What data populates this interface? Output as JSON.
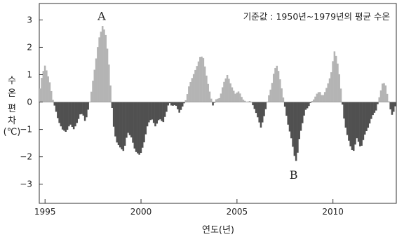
{
  "chart_data": {
    "type": "bar",
    "note": "기준값 : 1950년~1979년의 평균 수온",
    "ylabel_lines": [
      "수",
      "온",
      "",
      "편",
      "차",
      "(℃)"
    ],
    "xlabel": "연도(년)",
    "xlim": [
      1994.7,
      2013.3
    ],
    "ylim": [
      -3.7,
      3.6
    ],
    "x_ticks": [
      1995,
      2000,
      2005,
      2010
    ],
    "y_ticks": [
      3,
      2,
      1,
      0,
      -1,
      -2,
      -3
    ],
    "positive_color": "#b4b4b4",
    "negative_color": "#505050",
    "annotations": [
      {
        "label": "A",
        "x": 1997.95,
        "y": 3.15
      },
      {
        "label": "B",
        "x": 2007.95,
        "y": -2.65
      }
    ],
    "anchors": [
      [
        1994.7,
        0.3
      ],
      [
        1994.85,
        1.0
      ],
      [
        1995.0,
        1.35
      ],
      [
        1995.25,
        0.7
      ],
      [
        1995.4,
        0.1
      ],
      [
        1995.5,
        -0.15
      ],
      [
        1995.7,
        -0.7
      ],
      [
        1995.9,
        -1.0
      ],
      [
        1996.1,
        -1.1
      ],
      [
        1996.3,
        -0.8
      ],
      [
        1996.5,
        -1.0
      ],
      [
        1996.7,
        -0.7
      ],
      [
        1996.85,
        -0.4
      ],
      [
        1997.0,
        -0.5
      ],
      [
        1997.1,
        -0.75
      ],
      [
        1997.25,
        -0.25
      ],
      [
        1997.35,
        0.1
      ],
      [
        1997.6,
        1.3
      ],
      [
        1997.8,
        2.3
      ],
      [
        1998.0,
        2.8
      ],
      [
        1998.15,
        2.5
      ],
      [
        1998.3,
        1.6
      ],
      [
        1998.42,
        0.5
      ],
      [
        1998.5,
        -0.3
      ],
      [
        1998.6,
        -1.1
      ],
      [
        1998.75,
        -1.5
      ],
      [
        1998.95,
        -1.7
      ],
      [
        1999.1,
        -1.8
      ],
      [
        1999.3,
        -1.1
      ],
      [
        1999.5,
        -1.3
      ],
      [
        1999.7,
        -1.8
      ],
      [
        1999.95,
        -1.95
      ],
      [
        2000.15,
        -1.5
      ],
      [
        2000.35,
        -0.8
      ],
      [
        2000.55,
        -0.6
      ],
      [
        2000.75,
        -0.9
      ],
      [
        2000.95,
        -0.6
      ],
      [
        2001.15,
        -0.75
      ],
      [
        2001.35,
        -0.3
      ],
      [
        2001.45,
        0.0
      ],
      [
        2001.6,
        -0.15
      ],
      [
        2001.8,
        -0.1
      ],
      [
        2002.0,
        -0.4
      ],
      [
        2002.2,
        -0.1
      ],
      [
        2002.35,
        0.1
      ],
      [
        2002.5,
        0.6
      ],
      [
        2002.7,
        0.95
      ],
      [
        2002.9,
        1.3
      ],
      [
        2003.1,
        1.7
      ],
      [
        2003.25,
        1.6
      ],
      [
        2003.45,
        0.8
      ],
      [
        2003.6,
        0.3
      ],
      [
        2003.75,
        -0.15
      ],
      [
        2003.9,
        0.1
      ],
      [
        2004.1,
        0.15
      ],
      [
        2004.3,
        0.7
      ],
      [
        2004.5,
        1.0
      ],
      [
        2004.7,
        0.6
      ],
      [
        2004.9,
        0.3
      ],
      [
        2005.1,
        0.4
      ],
      [
        2005.3,
        0.1
      ],
      [
        2005.5,
        0.0
      ],
      [
        2005.7,
        0.05
      ],
      [
        2005.85,
        -0.15
      ],
      [
        2006.05,
        -0.5
      ],
      [
        2006.25,
        -0.95
      ],
      [
        2006.45,
        -0.4
      ],
      [
        2006.6,
        0.1
      ],
      [
        2006.8,
        0.6
      ],
      [
        2006.95,
        1.2
      ],
      [
        2007.1,
        1.35
      ],
      [
        2007.25,
        0.8
      ],
      [
        2007.4,
        0.2
      ],
      [
        2007.5,
        -0.2
      ],
      [
        2007.65,
        -0.8
      ],
      [
        2007.85,
        -1.4
      ],
      [
        2008.0,
        -2.0
      ],
      [
        2008.1,
        -2.2
      ],
      [
        2008.25,
        -1.3
      ],
      [
        2008.4,
        -0.8
      ],
      [
        2008.55,
        -0.3
      ],
      [
        2008.7,
        -0.2
      ],
      [
        2008.85,
        0.0
      ],
      [
        2009.0,
        0.1
      ],
      [
        2009.15,
        0.3
      ],
      [
        2009.3,
        0.4
      ],
      [
        2009.45,
        0.2
      ],
      [
        2009.6,
        0.4
      ],
      [
        2009.8,
        0.8
      ],
      [
        2009.95,
        1.2
      ],
      [
        2010.05,
        1.9
      ],
      [
        2010.2,
        1.6
      ],
      [
        2010.35,
        0.9
      ],
      [
        2010.45,
        0.2
      ],
      [
        2010.55,
        -0.5
      ],
      [
        2010.7,
        -1.1
      ],
      [
        2010.9,
        -1.6
      ],
      [
        2011.05,
        -1.85
      ],
      [
        2011.25,
        -1.3
      ],
      [
        2011.45,
        -1.7
      ],
      [
        2011.65,
        -1.2
      ],
      [
        2011.85,
        -0.9
      ],
      [
        2012.05,
        -0.5
      ],
      [
        2012.25,
        -0.3
      ],
      [
        2012.35,
        0.0
      ],
      [
        2012.45,
        0.3
      ],
      [
        2012.6,
        0.75
      ],
      [
        2012.75,
        0.6
      ],
      [
        2012.85,
        0.2
      ],
      [
        2012.95,
        -0.1
      ],
      [
        2013.05,
        -0.5
      ],
      [
        2013.2,
        -0.3
      ],
      [
        2013.3,
        0.05
      ]
    ]
  }
}
